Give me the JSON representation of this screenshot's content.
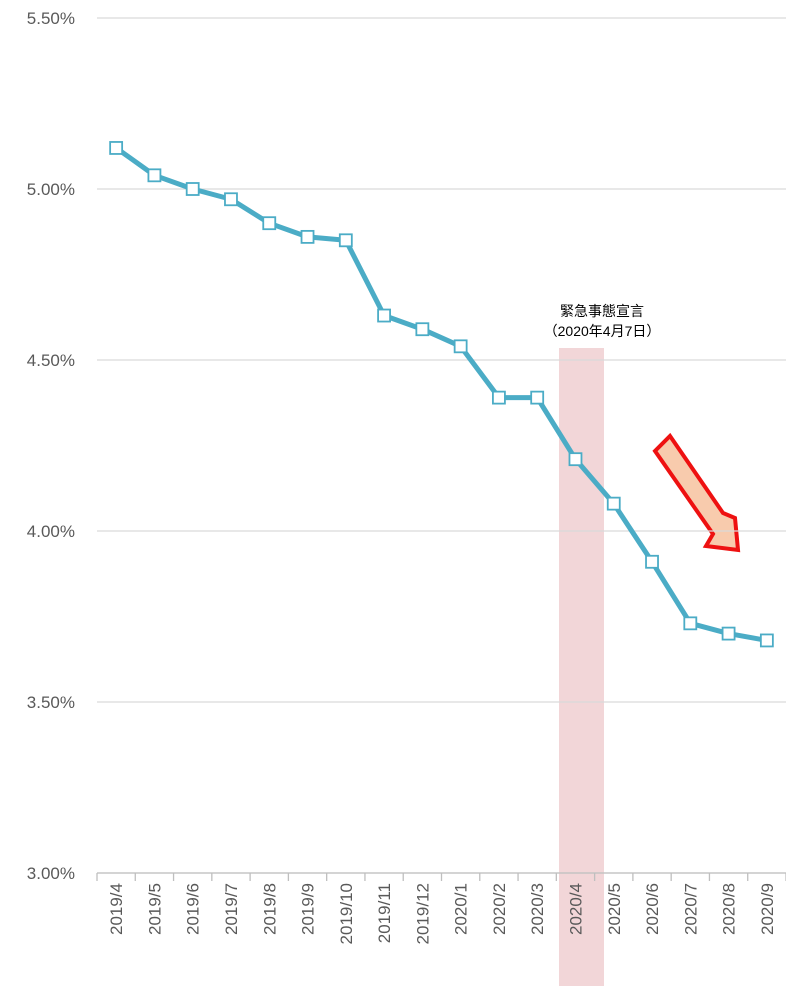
{
  "chart_data": {
    "type": "line",
    "annotation": [
      "緊急事態宣言",
      "（2020年4月7日）"
    ],
    "categories": [
      "2019/4",
      "2019/5",
      "2019/6",
      "2019/7",
      "2019/8",
      "2019/9",
      "2019/10",
      "2019/11",
      "2019/12",
      "2020/1",
      "2020/2",
      "2020/3",
      "2020/4",
      "2020/5",
      "2020/6",
      "2020/7",
      "2020/8",
      "2020/9"
    ],
    "values": [
      5.12,
      5.04,
      5.0,
      4.97,
      4.9,
      4.86,
      4.85,
      4.63,
      4.59,
      4.54,
      4.39,
      4.39,
      4.21,
      4.08,
      3.91,
      3.73,
      3.7,
      3.68
    ],
    "color": "#4bacc6",
    "ylim": [
      3.0,
      5.5
    ],
    "yticks": [
      {
        "value": 3.0,
        "label": "3.00%"
      },
      {
        "value": 3.5,
        "label": "3.50%"
      },
      {
        "value": 4.0,
        "label": "4.00%"
      },
      {
        "value": 4.5,
        "label": "4.50%"
      },
      {
        "value": 5.0,
        "label": "5.00%"
      },
      {
        "value": 5.5,
        "label": "5.50%"
      }
    ],
    "grid": true
  }
}
